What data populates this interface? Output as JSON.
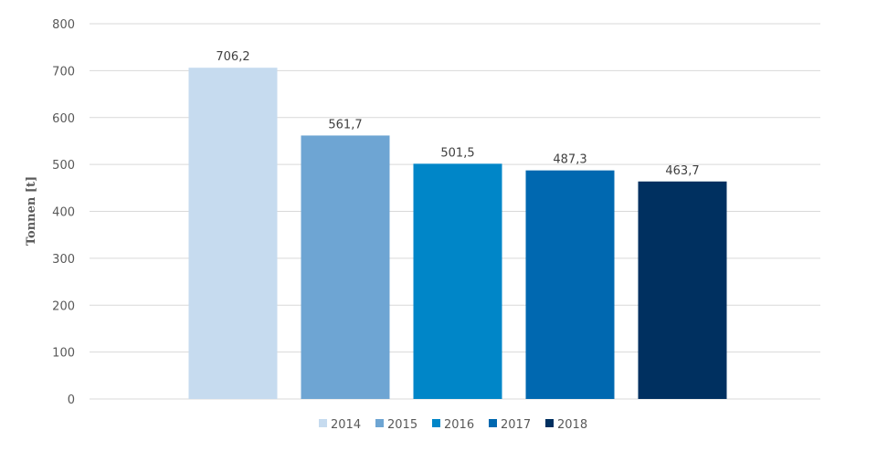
{
  "chart_data": {
    "type": "bar",
    "ylabel": "Tonnen [t]",
    "ylim": [
      0,
      800
    ],
    "yticks": [
      0,
      100,
      200,
      300,
      400,
      500,
      600,
      700,
      800
    ],
    "grid": true,
    "legend_position": "bottom",
    "series": [
      {
        "name": "2014",
        "value": 706.2,
        "label": "706,2",
        "color": "#c6dbef"
      },
      {
        "name": "2015",
        "value": 561.7,
        "label": "561,7",
        "color": "#6ea5d3"
      },
      {
        "name": "2016",
        "value": 501.5,
        "label": "501,5",
        "color": "#0086c8"
      },
      {
        "name": "2017",
        "value": 487.3,
        "label": "487,3",
        "color": "#0068b0"
      },
      {
        "name": "2018",
        "value": 463.7,
        "label": "463,7",
        "color": "#003060"
      }
    ]
  }
}
